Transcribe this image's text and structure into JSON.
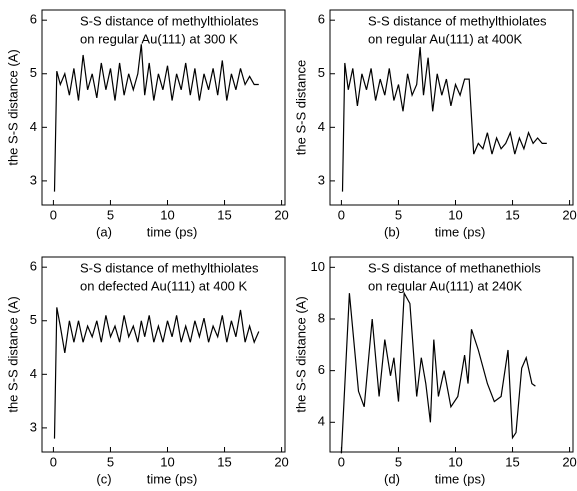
{
  "chart_data": [
    {
      "type": "line",
      "title": [
        "S-S distance of methylthiolates",
        "on regular Au(111) at 300 K"
      ],
      "panel_label": "(a)",
      "x_label": "time (ps)",
      "y_label": "the S-S distance (A)",
      "x": [
        0.1,
        0.3,
        0.6,
        1,
        1.4,
        1.8,
        2.2,
        2.6,
        3,
        3.4,
        3.8,
        4.2,
        4.6,
        5,
        5.4,
        5.8,
        6.2,
        6.6,
        7,
        7.4,
        7.7,
        8,
        8.4,
        8.8,
        9.2,
        9.6,
        10,
        10.4,
        10.8,
        11.2,
        11.6,
        12,
        12.4,
        12.8,
        13.2,
        13.6,
        14,
        14.4,
        14.8,
        15.2,
        15.6,
        16,
        16.4,
        16.8,
        17.2,
        17.6,
        18
      ],
      "values": [
        2.8,
        5.05,
        4.8,
        5.0,
        4.6,
        5.1,
        4.5,
        5.35,
        4.7,
        5.0,
        4.55,
        5.2,
        4.7,
        5.1,
        4.5,
        5.2,
        4.6,
        5.0,
        4.7,
        5.0,
        5.55,
        4.6,
        5.2,
        4.5,
        5.0,
        4.7,
        5.15,
        4.5,
        5.0,
        4.7,
        5.2,
        4.6,
        5.1,
        4.5,
        5.0,
        4.7,
        5.1,
        4.6,
        5.25,
        4.5,
        5.0,
        4.7,
        5.1,
        4.8,
        4.95,
        4.8,
        4.8
      ],
      "color": "#000000",
      "xlim": [
        -1,
        20.3
      ],
      "xticks": [
        0,
        5,
        10,
        15,
        20
      ],
      "ylim": [
        2.55,
        6.19
      ],
      "yticks": [
        3,
        4,
        5,
        6
      ]
    },
    {
      "type": "line",
      "title": [
        "S-S distance of methylthiolates",
        "on regular Au(111) at 400K"
      ],
      "panel_label": "(b)",
      "x_label": "time (ps)",
      "y_label": "the S-S distance",
      "x": [
        0.1,
        0.3,
        0.6,
        1,
        1.4,
        1.8,
        2.2,
        2.6,
        3,
        3.4,
        3.8,
        4.2,
        4.6,
        5,
        5.4,
        5.8,
        6.2,
        6.6,
        6.9,
        7.2,
        7.6,
        8,
        8.4,
        8.8,
        9.2,
        9.6,
        10,
        10.4,
        10.8,
        11.2,
        11.6,
        12,
        12.4,
        12.8,
        13.2,
        13.6,
        14,
        14.4,
        14.8,
        15.2,
        15.6,
        16,
        16.4,
        16.8,
        17.2,
        17.6,
        18
      ],
      "values": [
        2.8,
        5.2,
        4.7,
        5.1,
        4.4,
        5.0,
        4.7,
        5.1,
        4.5,
        4.9,
        4.6,
        5.1,
        4.5,
        4.8,
        4.3,
        5.0,
        4.6,
        4.8,
        5.5,
        4.6,
        5.3,
        4.3,
        5.0,
        4.6,
        4.9,
        4.4,
        4.8,
        4.6,
        4.9,
        4.9,
        3.5,
        3.7,
        3.6,
        3.9,
        3.5,
        3.8,
        3.6,
        3.7,
        3.9,
        3.5,
        3.8,
        3.6,
        3.9,
        3.7,
        3.8,
        3.7,
        3.7
      ],
      "color": "#000000",
      "xlim": [
        -1,
        20.3
      ],
      "xticks": [
        0,
        5,
        10,
        15,
        20
      ],
      "ylim": [
        2.55,
        6.19
      ],
      "yticks": [
        3,
        4,
        5,
        6
      ]
    },
    {
      "type": "line",
      "title": [
        "S-S distance of methylthiolates",
        "on defected Au(111) at 400 K"
      ],
      "panel_label": "(c)",
      "x_label": "time (ps)",
      "y_label": "the S-S distance (A)",
      "x": [
        0.1,
        0.3,
        0.6,
        1,
        1.4,
        1.8,
        2.2,
        2.6,
        3,
        3.4,
        3.8,
        4.2,
        4.6,
        5,
        5.4,
        5.8,
        6.2,
        6.6,
        7,
        7.4,
        7.7,
        8,
        8.4,
        8.8,
        9.2,
        9.6,
        10,
        10.4,
        10.8,
        11.2,
        11.6,
        12,
        12.4,
        12.8,
        13.2,
        13.6,
        14,
        14.4,
        14.8,
        15.2,
        15.6,
        16,
        16.4,
        16.8,
        17.2,
        17.6,
        18
      ],
      "values": [
        2.8,
        5.25,
        4.9,
        4.4,
        5.0,
        4.6,
        5.0,
        4.6,
        4.9,
        4.7,
        5.0,
        4.6,
        5.1,
        4.7,
        4.9,
        4.6,
        5.1,
        4.7,
        4.9,
        4.6,
        5.0,
        4.7,
        5.1,
        4.6,
        4.9,
        4.6,
        5.0,
        4.7,
        5.1,
        4.6,
        4.9,
        4.6,
        5.0,
        4.7,
        5.05,
        4.6,
        4.9,
        4.7,
        5.1,
        4.6,
        5.0,
        4.7,
        5.2,
        4.6,
        4.9,
        4.6,
        4.8
      ],
      "color": "#000000",
      "xlim": [
        -1,
        20.3
      ],
      "xticks": [
        0,
        5,
        10,
        15,
        20
      ],
      "ylim": [
        2.55,
        6.19
      ],
      "yticks": [
        3,
        4,
        5,
        6
      ]
    },
    {
      "type": "line",
      "title": [
        "S-S distance of methanethiols",
        "on regular Au(111) at 240K"
      ],
      "panel_label": "(d)",
      "x_label": "time (ps)",
      "y_label": "the S-S distance (A)",
      "x": [
        0,
        0.7,
        1.5,
        2,
        2.7,
        3.3,
        3.8,
        4.3,
        4.6,
        5,
        5.5,
        6,
        6.6,
        7,
        7.4,
        7.8,
        8.1,
        8.5,
        9,
        9.6,
        10.2,
        10.8,
        11.1,
        11.4,
        12,
        12.8,
        13.4,
        14,
        14.6,
        15,
        15.3,
        15.8,
        16.2,
        16.7,
        17
      ],
      "values": [
        2.8,
        9.0,
        5.2,
        4.6,
        8.0,
        5.0,
        7.2,
        5.8,
        6.5,
        4.8,
        9.0,
        8.6,
        5.0,
        6.5,
        5.5,
        4.0,
        7.2,
        5.0,
        6.0,
        4.6,
        5.0,
        6.6,
        5.5,
        7.6,
        6.8,
        5.5,
        4.8,
        5.0,
        6.8,
        3.4,
        3.6,
        6.1,
        6.5,
        5.5,
        5.4
      ],
      "color": "#000000",
      "xlim": [
        -1,
        20.3
      ],
      "xticks": [
        0,
        5,
        10,
        15,
        20
      ],
      "ylim": [
        2.85,
        10.4
      ],
      "yticks": [
        4,
        6,
        8,
        10
      ]
    }
  ]
}
